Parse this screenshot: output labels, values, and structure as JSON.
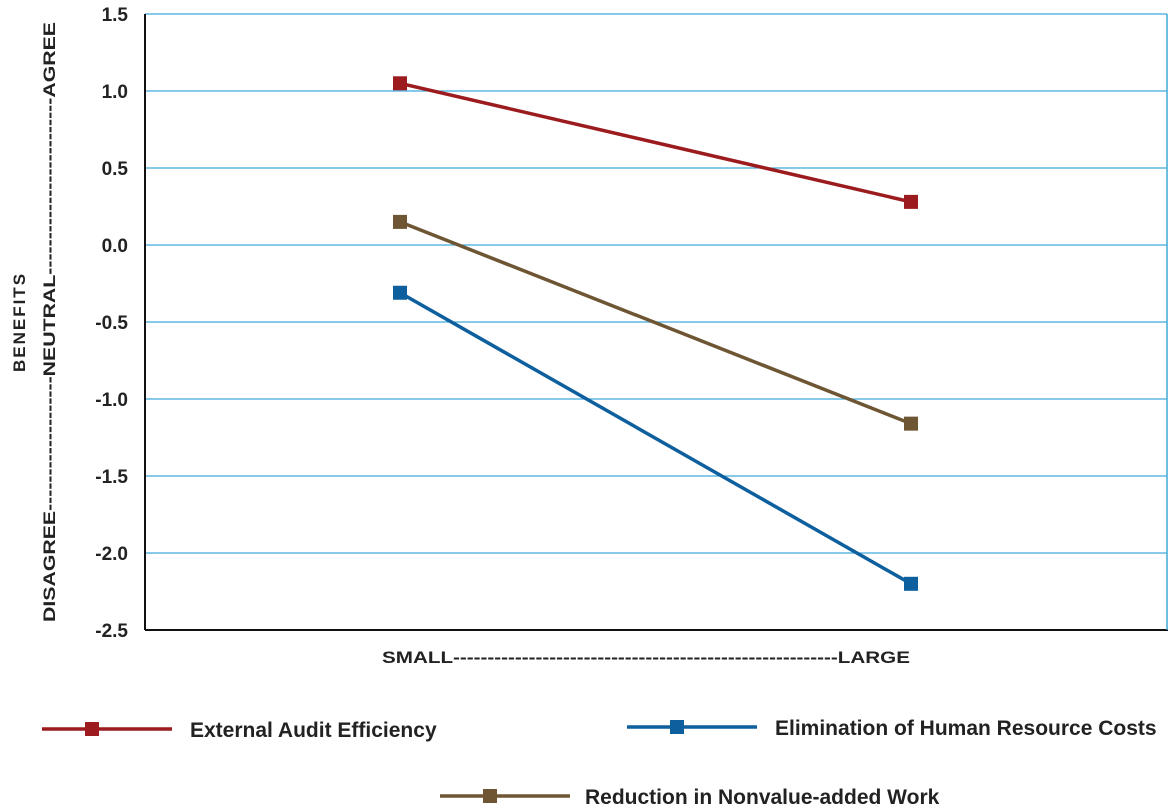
{
  "chart_data": {
    "type": "line",
    "categories": [
      "SMALL",
      "LARGE"
    ],
    "x_axis_text": "SMALL--------------------------------------------------------LARGE",
    "ylabel": "BENEFITS",
    "y_side_text": "DISAGREE-------------------NEUTRAL-------------------------AGREE",
    "ylim": [
      -2.5,
      1.5
    ],
    "yticks": [
      "1.5",
      "1.0",
      "0.5",
      "0.0",
      "-0.5",
      "-1.0",
      "-1.5",
      "-2.0",
      "-2.5"
    ],
    "grid": true,
    "legend_position": "bottom",
    "series": [
      {
        "name": "External Audit Efficiency",
        "color": "#9b1b1e",
        "values": [
          1.05,
          0.28
        ]
      },
      {
        "name": "Elimination of Human Resource Costs",
        "color": "#0d5f9e",
        "values": [
          -0.31,
          -2.2
        ]
      },
      {
        "name": "Reduction in Nonvalue-added Work",
        "color": "#6e5634",
        "values": [
          0.15,
          -1.16
        ]
      }
    ],
    "grid_color": "#3fa9dc"
  }
}
